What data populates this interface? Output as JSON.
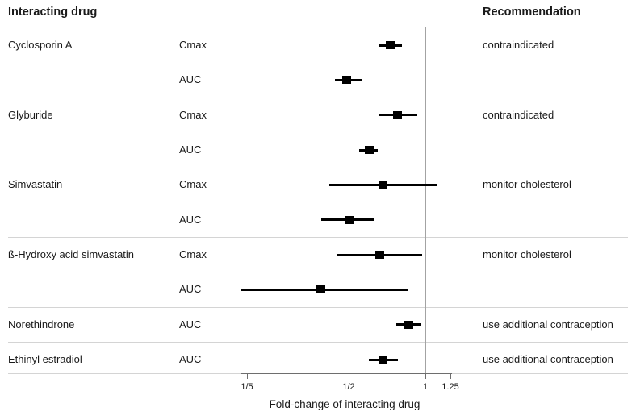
{
  "header": {
    "interacting_drug": "Interacting drug",
    "recommendation": "Recommendation"
  },
  "colors": {
    "marker": "#000000",
    "ci_bar": "#000000",
    "reference_line": "#a3a3a3",
    "separator": "#d4d4d4",
    "axis": "#6e6e6e",
    "text": "#1a1a1a"
  },
  "chart_data": {
    "type": "forest",
    "xlabel": "Fold-change of interacting drug",
    "x_scale": "log10",
    "reference_line": 1.0,
    "x_ticks": [
      {
        "label": "1/5",
        "value": 0.2
      },
      {
        "label": "1/2",
        "value": 0.5
      },
      {
        "label": "1",
        "value": 1.0
      },
      {
        "label": "1.25",
        "value": 1.25
      }
    ],
    "x_range": [
      0.18,
      1.3
    ],
    "legend_position": "none",
    "grid": false,
    "rows": [
      {
        "drug": "Cyclosporin A",
        "measure": "Cmax",
        "recommendation": "contraindicated",
        "estimate": 0.73,
        "ci_low": 0.66,
        "ci_high": 0.81,
        "group_start": true
      },
      {
        "drug": "",
        "measure": "AUC",
        "recommendation": "",
        "estimate": 0.49,
        "ci_low": 0.44,
        "ci_high": 0.56,
        "group_start": false
      },
      {
        "drug": "Glyburide",
        "measure": "Cmax",
        "recommendation": "contraindicated",
        "estimate": 0.78,
        "ci_low": 0.66,
        "ci_high": 0.93,
        "group_start": true
      },
      {
        "drug": "",
        "measure": "AUC",
        "recommendation": "",
        "estimate": 0.6,
        "ci_low": 0.55,
        "ci_high": 0.65,
        "group_start": false
      },
      {
        "drug": "Simvastatin",
        "measure": "Cmax",
        "recommendation": "monitor cholesterol",
        "estimate": 0.68,
        "ci_low": 0.42,
        "ci_high": 1.12,
        "group_start": true
      },
      {
        "drug": "",
        "measure": "AUC",
        "recommendation": "",
        "estimate": 0.5,
        "ci_low": 0.39,
        "ci_high": 0.63,
        "group_start": false
      },
      {
        "drug": "ß-Hydroxy acid simvastatin",
        "measure": "Cmax",
        "recommendation": "monitor cholesterol",
        "estimate": 0.66,
        "ci_low": 0.45,
        "ci_high": 0.97,
        "group_start": true
      },
      {
        "drug": "",
        "measure": "AUC",
        "recommendation": "",
        "estimate": 0.39,
        "ci_low": 0.19,
        "ci_high": 0.85,
        "group_start": false
      },
      {
        "drug": "Norethindrone",
        "measure": "AUC",
        "recommendation": "use additional contraception",
        "estimate": 0.86,
        "ci_low": 0.77,
        "ci_high": 0.96,
        "group_start": true
      },
      {
        "drug": "Ethinyl estradiol",
        "measure": "AUC",
        "recommendation": "use additional contraception",
        "estimate": 0.68,
        "ci_low": 0.6,
        "ci_high": 0.78,
        "group_start": true
      }
    ]
  }
}
